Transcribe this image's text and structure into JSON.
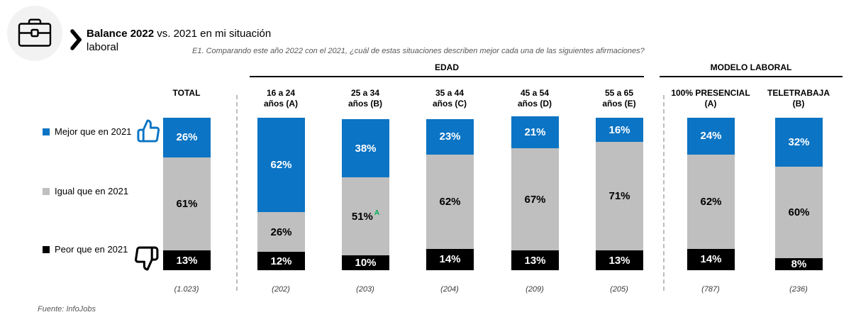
{
  "header": {
    "title_bold": "Balance 2022",
    "title_regular": " vs. 2021 en mi situación",
    "title_line2": "laboral",
    "question": "E1. Comparando este año 2022 con el 2021, ¿cuál de estas situaciones describen mejor cada una de las siguientes afirmaciones?"
  },
  "sections": {
    "edad_label": "EDAD",
    "modelo_label": "MODELO LABORAL"
  },
  "legend": {
    "items": [
      {
        "label": "Mejor que en 2021",
        "color": "#0b74c4",
        "icon": "thumbs-up-icon"
      },
      {
        "label": "Igual que en 2021",
        "color": "#bfbfbf",
        "icon": null
      },
      {
        "label": "Peor que en 2021",
        "color": "#000000",
        "icon": "thumbs-down-icon"
      }
    ]
  },
  "footer": {
    "source": "Fuente: InfoJobs"
  },
  "chart_data": {
    "type": "bar",
    "stacked": true,
    "orientation": "vertical",
    "value_unit": "%",
    "categories": [
      "TOTAL",
      "16 a 24 años (A)",
      "25 a 34 años (B)",
      "35 a 44 años (C)",
      "45 a 54 años (D)",
      "55 a 65 años (E)",
      "100% PRESENCIAL (A)",
      "TELETRABAJA (B)"
    ],
    "category_lines": [
      [
        "TOTAL"
      ],
      [
        "16 a 24",
        "años (A)"
      ],
      [
        "25 a 34",
        "años (B)"
      ],
      [
        "35 a 44",
        "años (C)"
      ],
      [
        "45 a 54",
        "años (D)"
      ],
      [
        "55 a 65",
        "años (E)"
      ],
      [
        "100% PRESENCIAL (A)"
      ],
      [
        "TELETRABAJA",
        "(B)"
      ]
    ],
    "category_groups": [
      "TOTAL",
      "EDAD",
      "EDAD",
      "EDAD",
      "EDAD",
      "EDAD",
      "MODELO LABORAL",
      "MODELO LABORAL"
    ],
    "bases": [
      "(1.023)",
      "(202)",
      "(203)",
      "(204)",
      "(209)",
      "(205)",
      "(787)",
      "(236)"
    ],
    "series": [
      {
        "name": "Mejor que en 2021",
        "key": "mejor",
        "color": "#0b74c4",
        "values": [
          26,
          62,
          38,
          23,
          21,
          16,
          24,
          32
        ]
      },
      {
        "name": "Igual que en 2021",
        "key": "igual",
        "color": "#bfbfbf",
        "values": [
          61,
          26,
          51,
          62,
          67,
          71,
          62,
          60
        ]
      },
      {
        "name": "Peor que en 2021",
        "key": "peor",
        "color": "#000000",
        "values": [
          13,
          12,
          10,
          14,
          13,
          13,
          14,
          8
        ]
      }
    ],
    "significance_notes": [
      {
        "column_index": 2,
        "series_key": "igual",
        "note": "A",
        "color": "#00b050"
      }
    ]
  }
}
